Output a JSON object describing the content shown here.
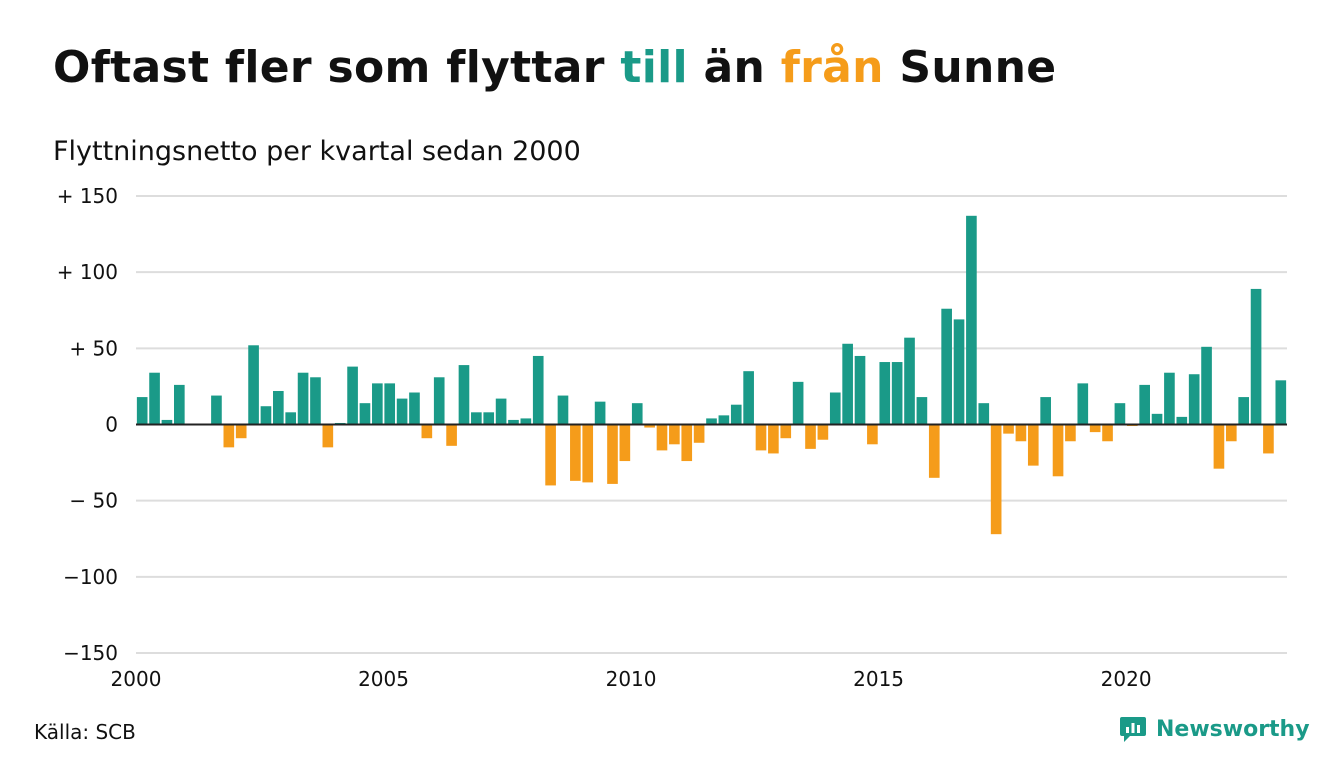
{
  "title": {
    "part1": "Oftast fler som flyttar ",
    "word_to": "till",
    "part2": " än ",
    "word_from": "från",
    "part3": " Sunne"
  },
  "subtitle": "Flyttningsnetto per kvartal sedan 2000",
  "source": "Källa: SCB",
  "brand": {
    "name": "Newsworthy",
    "icon": "newsworthy-logo-icon"
  },
  "colors": {
    "positive": "#1a9a88",
    "negative": "#f59c1a",
    "grid": "#dddddd",
    "zero_line": "#222222",
    "text": "#111111"
  },
  "chart_data": {
    "type": "bar",
    "title": "Oftast fler som flyttar till än från Sunne",
    "subtitle": "Flyttningsnetto per kvartal sedan 2000",
    "ylim": [
      -150,
      150
    ],
    "y_ticks": [
      150,
      100,
      50,
      0,
      -50,
      -100,
      -150
    ],
    "y_tick_labels": [
      "+ 150",
      "+ 100",
      "+  50",
      "0",
      "− 50",
      "−100",
      "−150"
    ],
    "x_range": [
      2000,
      2023.25
    ],
    "x_ticks": [
      2000,
      2005,
      2010,
      2015,
      2020
    ],
    "x_tick_labels": [
      "2000",
      "2005",
      "2010",
      "2015",
      "2020"
    ],
    "grid": true,
    "categories": [
      "2000 K1",
      "2000 K2",
      "2000 K3",
      "2000 K4",
      "2001 K1",
      "2001 K2",
      "2001 K3",
      "2001 K4",
      "2002 K1",
      "2002 K2",
      "2002 K3",
      "2002 K4",
      "2003 K1",
      "2003 K2",
      "2003 K3",
      "2003 K4",
      "2004 K1",
      "2004 K2",
      "2004 K3",
      "2004 K4",
      "2005 K1",
      "2005 K2",
      "2005 K3",
      "2005 K4",
      "2006 K1",
      "2006 K2",
      "2006 K3",
      "2006 K4",
      "2007 K1",
      "2007 K2",
      "2007 K3",
      "2007 K4",
      "2008 K1",
      "2008 K2",
      "2008 K3",
      "2008 K4",
      "2009 K1",
      "2009 K2",
      "2009 K3",
      "2009 K4",
      "2010 K1",
      "2010 K2",
      "2010 K3",
      "2010 K4",
      "2011 K1",
      "2011 K2",
      "2011 K3",
      "2011 K4",
      "2012 K1",
      "2012 K2",
      "2012 K3",
      "2012 K4",
      "2013 K1",
      "2013 K2",
      "2013 K3",
      "2013 K4",
      "2014 K1",
      "2014 K2",
      "2014 K3",
      "2014 K4",
      "2015 K1",
      "2015 K2",
      "2015 K3",
      "2015 K4",
      "2016 K1",
      "2016 K2",
      "2016 K3",
      "2016 K4",
      "2017 K1",
      "2017 K2",
      "2017 K3",
      "2017 K4",
      "2018 K1",
      "2018 K2",
      "2018 K3",
      "2018 K4",
      "2019 K1",
      "2019 K2",
      "2019 K3",
      "2019 K4",
      "2020 K1",
      "2020 K2",
      "2020 K3",
      "2020 K4",
      "2021 K1",
      "2021 K2",
      "2021 K3",
      "2021 K4",
      "2022 K1",
      "2022 K2",
      "2022 K3",
      "2022 K4",
      "2023 K1",
      "2023 K2"
    ],
    "values": [
      18,
      34,
      3,
      26,
      0,
      0,
      19,
      -15,
      -9,
      52,
      12,
      22,
      8,
      34,
      31,
      -15,
      1,
      38,
      14,
      27,
      27,
      17,
      21,
      -9,
      31,
      -14,
      39,
      8,
      8,
      17,
      3,
      4,
      45,
      -40,
      19,
      -37,
      -38,
      15,
      -39,
      -24,
      14,
      -2,
      -17,
      -13,
      -24,
      -12,
      4,
      6,
      13,
      35,
      -17,
      -19,
      -9,
      28,
      -16,
      -10,
      21,
      53,
      45,
      -13,
      41,
      41,
      57,
      18,
      -35,
      76,
      69,
      137,
      14,
      -72,
      -6,
      -11,
      -27,
      18,
      -34,
      -11,
      27,
      -5,
      -11,
      14,
      -1,
      26,
      7,
      34,
      5,
      33,
      51,
      -29,
      -11,
      18,
      89,
      -19,
      29,
      0
    ]
  }
}
